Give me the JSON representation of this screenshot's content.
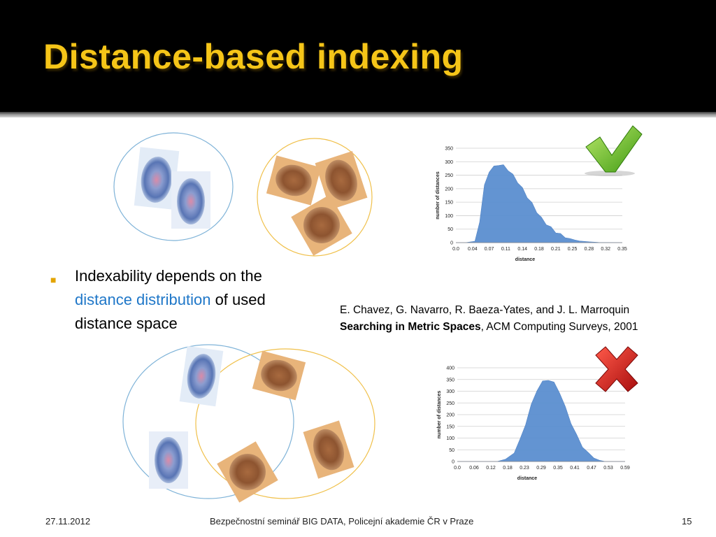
{
  "slide": {
    "title": "Distance-based indexing",
    "bullet": {
      "prefix": "Indexability depends on the ",
      "highlight": "distance distribution",
      "suffix": " of used distance space"
    },
    "reference": {
      "authors": "E. Chavez, G. Navarro, R. Baeza-Yates, and J. L. Marroquin",
      "paper_title": "Searching in Metric Spaces",
      "venue": ", ACM Computing Surveys, 2001"
    },
    "footer": {
      "date": "27.11.2012",
      "event": "Bezpečnostní seminář BIG DATA, Policejní akademie ČR v Praze",
      "page": "15"
    },
    "colors": {
      "title": "#f5c518",
      "highlight": "#1f77c8",
      "bullet": "#e3a400",
      "histogram": "#5b8fd0"
    },
    "icons": {
      "good": "checkmark-icon",
      "bad": "cross-icon"
    }
  },
  "chart_data": [
    {
      "type": "area",
      "title": "",
      "xlabel": "distance",
      "ylabel": "number of distances",
      "ylim": [
        0,
        350
      ],
      "yticks": [
        "0",
        "50",
        "100",
        "150",
        "200",
        "250",
        "300",
        "350"
      ],
      "xticks": [
        "0.0",
        "0.04",
        "0.07",
        "0.11",
        "0.14",
        "0.18",
        "0.21",
        "0.25",
        "0.28",
        "0.32",
        "0.35"
      ],
      "x": [
        0.0,
        0.02,
        0.04,
        0.05,
        0.06,
        0.07,
        0.08,
        0.09,
        0.1,
        0.11,
        0.12,
        0.13,
        0.14,
        0.15,
        0.16,
        0.17,
        0.18,
        0.19,
        0.2,
        0.21,
        0.22,
        0.23,
        0.24,
        0.25,
        0.26,
        0.28,
        0.3,
        0.35
      ],
      "values": [
        0,
        0,
        5,
        80,
        210,
        265,
        280,
        290,
        285,
        270,
        250,
        225,
        200,
        170,
        145,
        115,
        90,
        70,
        55,
        40,
        30,
        22,
        15,
        10,
        6,
        3,
        1,
        0
      ],
      "grid": true,
      "rating": "good"
    },
    {
      "type": "area",
      "title": "",
      "xlabel": "distance",
      "ylabel": "number of distances",
      "ylim": [
        0,
        400
      ],
      "yticks": [
        "0",
        "50",
        "100",
        "150",
        "200",
        "250",
        "300",
        "350",
        "400"
      ],
      "xticks": [
        "0.0",
        "0.06",
        "0.12",
        "0.18",
        "0.23",
        "0.29",
        "0.35",
        "0.41",
        "0.47",
        "0.53",
        "0.59"
      ],
      "x": [
        0.0,
        0.14,
        0.17,
        0.2,
        0.22,
        0.24,
        0.26,
        0.28,
        0.3,
        0.32,
        0.34,
        0.36,
        0.38,
        0.4,
        0.42,
        0.44,
        0.46,
        0.48,
        0.5,
        0.52,
        0.59
      ],
      "values": [
        0,
        0,
        10,
        40,
        90,
        160,
        240,
        305,
        340,
        350,
        335,
        295,
        230,
        165,
        110,
        65,
        35,
        15,
        5,
        0,
        0
      ],
      "grid": true,
      "rating": "bad"
    }
  ]
}
